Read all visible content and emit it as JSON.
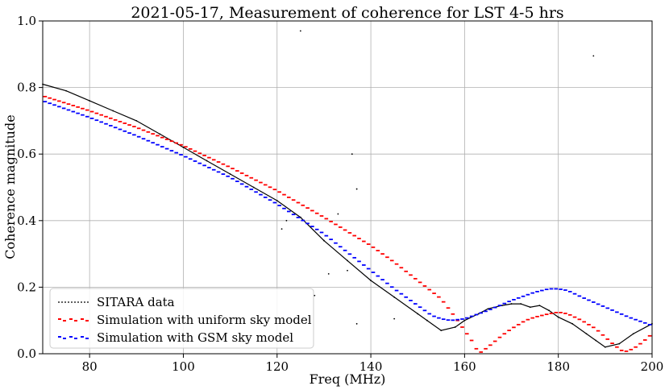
{
  "chart_data": {
    "type": "line",
    "title": "2021-05-17, Measurement of coherence for LST 4-5 hrs",
    "xlabel": "Freq (MHz)",
    "ylabel": "Coherence magnitude",
    "xlim": [
      70,
      200
    ],
    "ylim": [
      0,
      1.0
    ],
    "xticks": [
      80,
      100,
      120,
      140,
      160,
      180,
      200
    ],
    "yticks": [
      0.0,
      0.2,
      0.4,
      0.6,
      0.8,
      1.0
    ],
    "grid": true,
    "legend_position": "bottom-left",
    "series": [
      {
        "name": "SITARA data",
        "color": "#000000",
        "style": "dotted-line",
        "x": [
          70,
          75,
          80,
          85,
          90,
          95,
          100,
          105,
          110,
          115,
          120,
          125,
          130,
          135,
          140,
          145,
          150,
          152,
          155,
          158,
          160,
          163,
          165,
          168,
          170,
          172,
          174,
          176,
          178,
          180,
          183,
          186,
          188,
          190,
          193,
          196,
          200
        ],
        "y": [
          0.81,
          0.79,
          0.76,
          0.73,
          0.7,
          0.66,
          0.62,
          0.58,
          0.54,
          0.5,
          0.46,
          0.41,
          0.34,
          0.28,
          0.22,
          0.17,
          0.12,
          0.1,
          0.07,
          0.08,
          0.1,
          0.12,
          0.135,
          0.145,
          0.15,
          0.15,
          0.14,
          0.145,
          0.13,
          0.11,
          0.09,
          0.06,
          0.04,
          0.02,
          0.03,
          0.06,
          0.09
        ]
      },
      {
        "name": "Simulation with uniform sky model",
        "color": "#ff0000",
        "style": "dashed-steps",
        "x": [
          70,
          80,
          90,
          100,
          110,
          120,
          130,
          140,
          145,
          150,
          155,
          158,
          160,
          162,
          163,
          165,
          168,
          170,
          173,
          175,
          178,
          180,
          182,
          185,
          188,
          190,
          192,
          194,
          196,
          198,
          200
        ],
        "y": [
          0.775,
          0.73,
          0.68,
          0.625,
          0.56,
          0.49,
          0.41,
          0.325,
          0.275,
          0.22,
          0.165,
          0.11,
          0.07,
          0.03,
          0.0,
          0.02,
          0.055,
          0.075,
          0.1,
          0.11,
          0.12,
          0.125,
          0.12,
          0.1,
          0.075,
          0.05,
          0.025,
          0.005,
          0.015,
          0.035,
          0.06
        ]
      },
      {
        "name": "Simulation with GSM sky model",
        "color": "#0000ff",
        "style": "dashed-steps",
        "x": [
          70,
          80,
          90,
          100,
          110,
          120,
          130,
          140,
          145,
          150,
          153,
          155,
          157,
          160,
          165,
          170,
          175,
          178,
          180,
          182,
          185,
          190,
          195,
          200
        ],
        "y": [
          0.76,
          0.71,
          0.655,
          0.595,
          0.53,
          0.45,
          0.36,
          0.25,
          0.195,
          0.145,
          0.115,
          0.105,
          0.1,
          0.105,
          0.13,
          0.16,
          0.185,
          0.195,
          0.195,
          0.19,
          0.17,
          0.14,
          0.11,
          0.085
        ]
      }
    ],
    "outliers": {
      "x": [
        125,
        187.5,
        136,
        137,
        133,
        122,
        121,
        135,
        128,
        131,
        145,
        137
      ],
      "y": [
        0.97,
        0.895,
        0.6,
        0.495,
        0.42,
        0.4,
        0.375,
        0.25,
        0.175,
        0.24,
        0.105,
        0.09
      ]
    }
  }
}
